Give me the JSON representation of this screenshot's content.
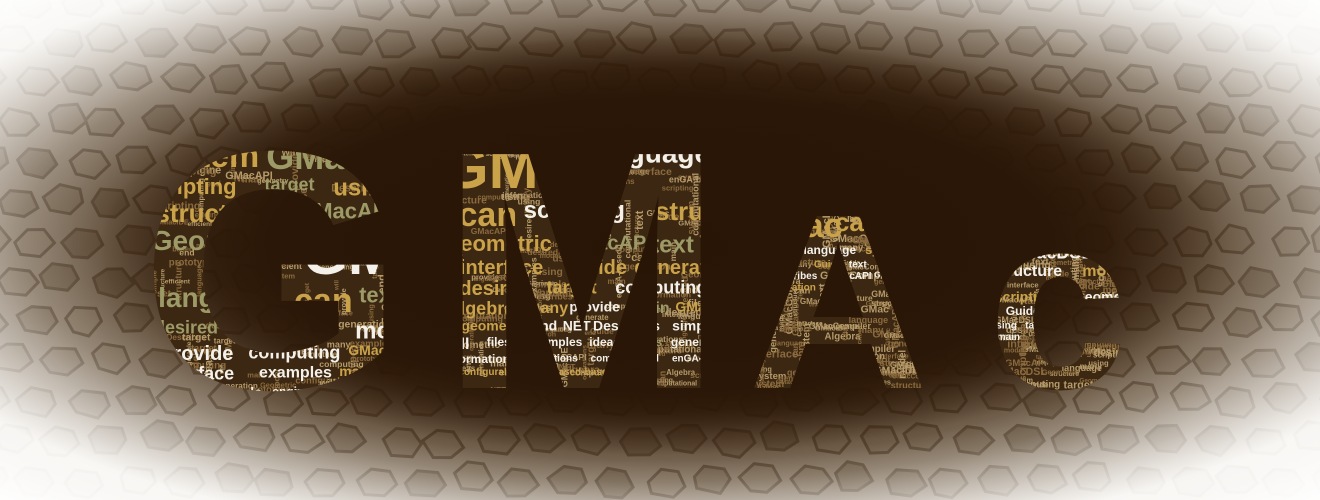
{
  "banner": {
    "logo_text": "GMac",
    "letters": [
      "G",
      "M",
      "A",
      "c"
    ],
    "colors": {
      "background_dark": "#241406",
      "background_mid": "#3a2512",
      "tile_light": "#f2eee8",
      "tile_mid": "#8c8374",
      "word_gold": "#c9a24a",
      "word_olive": "#9c9a66",
      "word_white": "#f4f1ea",
      "word_brown": "#8a6a3e"
    },
    "word_cloud": {
      "G": [
        {
          "text": "system",
          "size": 34,
          "color": "gold"
        },
        {
          "text": "GMacDSL",
          "size": 36,
          "color": "olive"
        },
        {
          "text": "scripting",
          "size": 22,
          "color": "gold"
        },
        {
          "text": "target",
          "size": 18,
          "color": "olive"
        },
        {
          "text": "using",
          "size": 24,
          "color": "gold"
        },
        {
          "text": "Guide",
          "size": 22,
          "color": "olive"
        },
        {
          "text": "structure",
          "size": 26,
          "color": "gold"
        },
        {
          "text": "GMacAPI",
          "size": 22,
          "color": "olive"
        },
        {
          "text": "Geometric",
          "size": 28,
          "color": "olive"
        },
        {
          "text": "GMac",
          "size": 58,
          "color": "white"
        },
        {
          "text": "language",
          "size": 28,
          "color": "olive"
        },
        {
          "text": "can",
          "size": 34,
          "color": "gold"
        },
        {
          "text": "text",
          "size": 22,
          "color": "olive"
        },
        {
          "text": "Algebra",
          "size": 18,
          "color": "gold"
        },
        {
          "text": "desired",
          "size": 18,
          "color": "olive"
        },
        {
          "text": "generation",
          "size": 20,
          "color": "gold"
        },
        {
          "text": "model",
          "size": 24,
          "color": "white"
        },
        {
          "text": "provide",
          "size": 20,
          "color": "white"
        },
        {
          "text": "computing",
          "size": 18,
          "color": "white"
        },
        {
          "text": "GMacIDE",
          "size": 14,
          "color": "gold"
        },
        {
          "text": "interface",
          "size": 18,
          "color": "white"
        },
        {
          "text": "examples",
          "size": 16,
          "color": "white"
        },
        {
          "text": "main",
          "size": 14,
          "color": "gold"
        },
        {
          "text": "use",
          "size": 20,
          "color": "olive"
        },
        {
          "text": "many",
          "size": 20,
          "color": "gold"
        },
        {
          "text": "will",
          "size": 14,
          "color": "white"
        },
        {
          "text": "NET",
          "size": 14,
          "color": "white"
        },
        {
          "text": "simple",
          "size": 14,
          "color": "white"
        },
        {
          "text": "engine",
          "size": 12,
          "color": "white"
        },
        {
          "text": "Information",
          "size": 12,
          "color": "gold"
        },
        {
          "text": "geometry",
          "size": 14,
          "color": "gold"
        },
        {
          "text": "based",
          "size": 12,
          "color": "white"
        },
        {
          "text": "ideas",
          "size": 12,
          "color": "white"
        },
        {
          "text": "end",
          "size": 14,
          "color": "white"
        },
        {
          "text": "set",
          "size": 16,
          "color": "white"
        },
        {
          "text": "Describes",
          "size": 12,
          "color": "gold"
        },
        {
          "text": "efficient",
          "size": 12,
          "color": "gold"
        },
        {
          "text": "configurable",
          "size": 12,
          "color": "gold"
        },
        {
          "text": "generating",
          "size": 10,
          "color": "white"
        },
        {
          "text": "prototype",
          "size": 10,
          "color": "white"
        }
      ],
      "M": [
        {
          "text": "GMac",
          "size": 60,
          "color": "gold"
        },
        {
          "text": "language",
          "size": 28,
          "color": "white"
        },
        {
          "text": "model",
          "size": 26,
          "color": "white"
        },
        {
          "text": "can",
          "size": 34,
          "color": "gold"
        },
        {
          "text": "scripting",
          "size": 24,
          "color": "white"
        },
        {
          "text": "structure",
          "size": 26,
          "color": "gold"
        },
        {
          "text": "Geometric",
          "size": 22,
          "color": "gold"
        },
        {
          "text": "GMacAPI",
          "size": 20,
          "color": "olive"
        },
        {
          "text": "text",
          "size": 24,
          "color": "olive"
        },
        {
          "text": "interface",
          "size": 20,
          "color": "gold"
        },
        {
          "text": "Guide",
          "size": 20,
          "color": "gold"
        },
        {
          "text": "generation",
          "size": 20,
          "color": "gold"
        },
        {
          "text": "desired",
          "size": 20,
          "color": "gold"
        },
        {
          "text": "target",
          "size": 18,
          "color": "gold"
        },
        {
          "text": "computing",
          "size": 18,
          "color": "white"
        },
        {
          "text": "using",
          "size": 18,
          "color": "white"
        },
        {
          "text": "Algebra",
          "size": 18,
          "color": "gold"
        },
        {
          "text": "many",
          "size": 16,
          "color": "gold"
        },
        {
          "text": "provide",
          "size": 14,
          "color": "white"
        },
        {
          "text": "main",
          "size": 16,
          "color": "olive"
        },
        {
          "text": "GMacIDE",
          "size": 14,
          "color": "gold"
        },
        {
          "text": "geometry",
          "size": 14,
          "color": "gold"
        },
        {
          "text": "end",
          "size": 14,
          "color": "white"
        },
        {
          "text": "NET",
          "size": 14,
          "color": "white"
        },
        {
          "text": "Describes",
          "size": 14,
          "color": "white"
        },
        {
          "text": "simple",
          "size": 14,
          "color": "white"
        },
        {
          "text": "system",
          "size": 16,
          "color": "gold"
        },
        {
          "text": "will",
          "size": 16,
          "color": "white"
        },
        {
          "text": "files",
          "size": 12,
          "color": "white"
        },
        {
          "text": "examples",
          "size": 12,
          "color": "white"
        },
        {
          "text": "ideas",
          "size": 12,
          "color": "white"
        },
        {
          "text": "users",
          "size": 12,
          "color": "olive"
        },
        {
          "text": "generate",
          "size": 12,
          "color": "white"
        },
        {
          "text": "information",
          "size": 12,
          "color": "white"
        },
        {
          "text": "operations",
          "size": 10,
          "color": "white"
        },
        {
          "text": "computational",
          "size": 10,
          "color": "white"
        },
        {
          "text": "enGA-basedd",
          "size": 10,
          "color": "white"
        },
        {
          "text": "GMACAPI",
          "size": 10,
          "color": "white"
        },
        {
          "text": "configurable",
          "size": 10,
          "color": "gold"
        },
        {
          "text": "GA-based-based",
          "size": 10,
          "color": "gold"
        }
      ],
      "A": [
        {
          "text": "GMac",
          "size": 34,
          "color": "gold"
        },
        {
          "text": "can",
          "size": 26,
          "color": "gold"
        },
        {
          "text": "structure",
          "size": 18,
          "color": "white"
        },
        {
          "text": "model",
          "size": 14,
          "color": "white"
        },
        {
          "text": "language",
          "size": 12,
          "color": "white"
        },
        {
          "text": "system",
          "size": 12,
          "color": "gold"
        },
        {
          "text": "GMacCompiler",
          "size": 10,
          "color": "white"
        },
        {
          "text": "interface",
          "size": 10,
          "color": "white"
        },
        {
          "text": "Guide",
          "size": 10,
          "color": "gold"
        },
        {
          "text": "text",
          "size": 10,
          "color": "white"
        },
        {
          "text": "using",
          "size": 10,
          "color": "white"
        },
        {
          "text": "many",
          "size": 10,
          "color": "white"
        },
        {
          "text": "Algebra",
          "size": 10,
          "color": "white"
        },
        {
          "text": "Describes",
          "size": 10,
          "color": "white"
        },
        {
          "text": "GMacAPI",
          "size": 10,
          "color": "white"
        },
        {
          "text": "GMacIDE",
          "size": 8,
          "color": "white"
        },
        {
          "text": "scripting",
          "size": 10,
          "color": "gold"
        },
        {
          "text": "generation",
          "size": 10,
          "color": "gold"
        }
      ],
      "c": [
        {
          "text": "GMac",
          "size": 34,
          "color": "white"
        },
        {
          "text": "system",
          "size": 22,
          "color": "gold"
        },
        {
          "text": "GMacDSL",
          "size": 18,
          "color": "white"
        },
        {
          "text": "language",
          "size": 16,
          "color": "white"
        },
        {
          "text": "structure",
          "size": 16,
          "color": "white"
        },
        {
          "text": "model",
          "size": 16,
          "color": "gold"
        },
        {
          "text": "can",
          "size": 26,
          "color": "gold"
        },
        {
          "text": "scripting",
          "size": 14,
          "color": "gold"
        },
        {
          "text": "Geometric",
          "size": 14,
          "color": "white"
        },
        {
          "text": "GMacAPI",
          "size": 12,
          "color": "white"
        },
        {
          "text": "Guide",
          "size": 12,
          "color": "white"
        },
        {
          "text": "text",
          "size": 14,
          "color": "white"
        },
        {
          "text": "interface",
          "size": 10,
          "color": "white"
        },
        {
          "text": "computing",
          "size": 10,
          "color": "white"
        },
        {
          "text": "using",
          "size": 10,
          "color": "white"
        },
        {
          "text": "target",
          "size": 10,
          "color": "white"
        },
        {
          "text": "desired",
          "size": 10,
          "color": "white"
        },
        {
          "text": "many",
          "size": 10,
          "color": "white"
        },
        {
          "text": "provide",
          "size": 10,
          "color": "white"
        },
        {
          "text": "main",
          "size": 10,
          "color": "white"
        }
      ]
    }
  }
}
